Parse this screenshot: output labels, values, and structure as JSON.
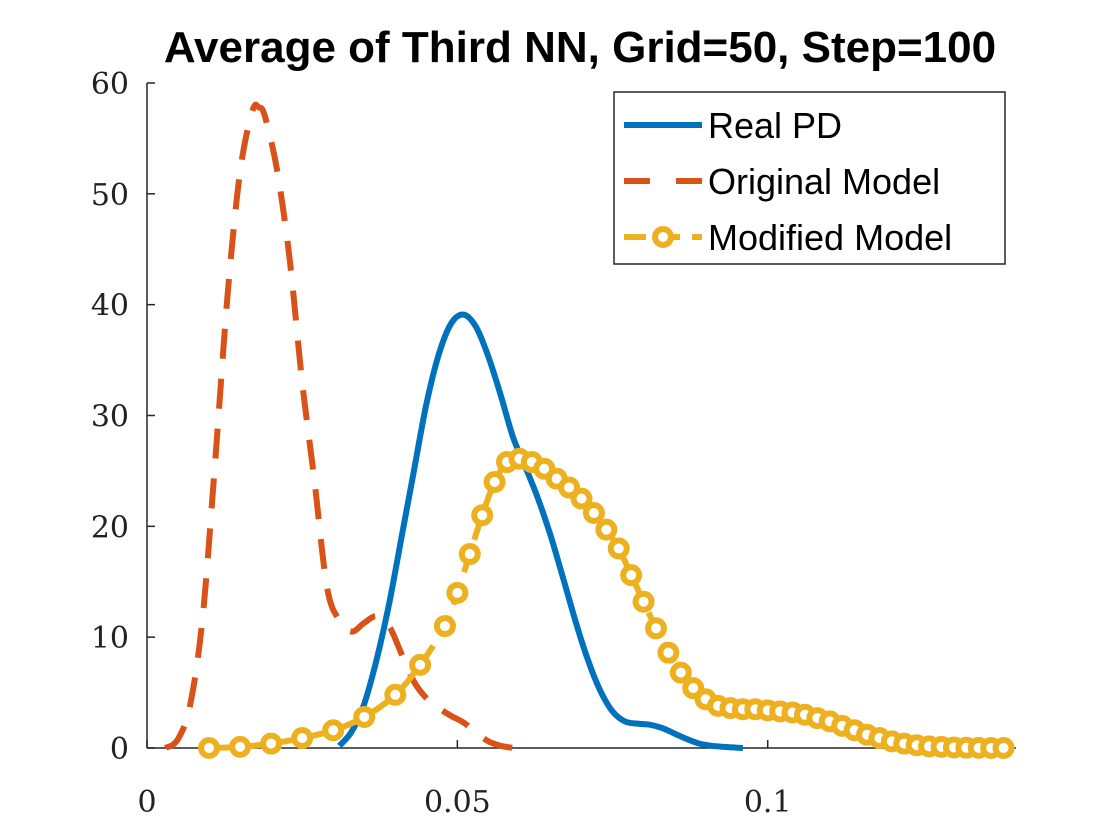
{
  "chart_data": {
    "type": "line",
    "title": "Average of Third NN, Grid=50, Step=100",
    "xlabel": "",
    "ylabel": "",
    "xlim": [
      0,
      0.14
    ],
    "ylim": [
      0,
      60
    ],
    "xticks": [
      0,
      0.05,
      0.1
    ],
    "xtick_labels": [
      "0",
      "0.05",
      "0.1"
    ],
    "yticks": [
      0,
      10,
      20,
      30,
      40,
      50,
      60
    ],
    "ytick_labels": [
      "0",
      "10",
      "20",
      "30",
      "40",
      "50",
      "60"
    ],
    "grid": false,
    "legend_position": "top-right",
    "series": [
      {
        "name": "Real PD",
        "color": "#0072BD",
        "style": "solid",
        "x": [
          0.031,
          0.033,
          0.035,
          0.037,
          0.039,
          0.041,
          0.043,
          0.045,
          0.047,
          0.049,
          0.051,
          0.053,
          0.055,
          0.057,
          0.059,
          0.061,
          0.063,
          0.065,
          0.067,
          0.069,
          0.071,
          0.073,
          0.075,
          0.077,
          0.079,
          0.081,
          0.083,
          0.085,
          0.087,
          0.089,
          0.091,
          0.093,
          0.096
        ],
        "y": [
          0.2,
          1.5,
          4,
          8,
          13,
          19,
          25,
          31,
          35.5,
          38.3,
          39.1,
          38,
          35.3,
          31.8,
          28,
          25.3,
          22.5,
          19.2,
          15.4,
          11.5,
          8,
          5.2,
          3.3,
          2.4,
          2.2,
          2.1,
          1.8,
          1.3,
          0.8,
          0.4,
          0.2,
          0.1,
          0
        ]
      },
      {
        "name": "Original Model",
        "color": "#D95319",
        "style": "dashed",
        "x": [
          0.003,
          0.005,
          0.007,
          0.009,
          0.011,
          0.013,
          0.015,
          0.017,
          0.018,
          0.019,
          0.021,
          0.023,
          0.025,
          0.027,
          0.029,
          0.031,
          0.033,
          0.035,
          0.037,
          0.039,
          0.041,
          0.043,
          0.045,
          0.047,
          0.049,
          0.051,
          0.053,
          0.055,
          0.057,
          0.059
        ],
        "y": [
          0,
          0.8,
          4,
          12,
          26,
          41,
          52,
          57.5,
          57.8,
          57,
          52,
          44,
          33,
          24,
          14.5,
          11.5,
          10.5,
          11.3,
          11.9,
          11,
          8.5,
          6,
          4.5,
          3.6,
          2.9,
          2.3,
          1.4,
          0.6,
          0.2,
          0
        ]
      },
      {
        "name": "Modified Model",
        "color": "#EDB120",
        "style": "dashed-circle",
        "x": [
          0.01,
          0.015,
          0.02,
          0.025,
          0.03,
          0.035,
          0.04,
          0.044,
          0.048,
          0.05,
          0.052,
          0.054,
          0.056,
          0.058,
          0.06,
          0.062,
          0.064,
          0.066,
          0.068,
          0.07,
          0.072,
          0.074,
          0.076,
          0.078,
          0.08,
          0.082,
          0.084,
          0.086,
          0.088,
          0.09,
          0.092,
          0.094,
          0.096,
          0.098,
          0.1,
          0.102,
          0.104,
          0.106,
          0.108,
          0.11,
          0.112,
          0.114,
          0.116,
          0.118,
          0.12,
          0.122,
          0.124,
          0.126,
          0.128,
          0.13,
          0.132,
          0.134,
          0.136,
          0.138
        ],
        "y": [
          0,
          0.1,
          0.4,
          0.9,
          1.6,
          2.8,
          4.8,
          7.5,
          11,
          14,
          17.5,
          21,
          24,
          25.8,
          26.1,
          25.8,
          25.2,
          24.3,
          23.5,
          22.5,
          21.2,
          19.7,
          18,
          15.6,
          13.2,
          10.8,
          8.6,
          6.8,
          5.4,
          4.4,
          3.8,
          3.6,
          3.5,
          3.5,
          3.4,
          3.3,
          3.2,
          3,
          2.7,
          2.4,
          2,
          1.6,
          1.2,
          0.9,
          0.6,
          0.4,
          0.25,
          0.15,
          0.1,
          0.05,
          0.02,
          0.01,
          0,
          0
        ]
      }
    ]
  }
}
